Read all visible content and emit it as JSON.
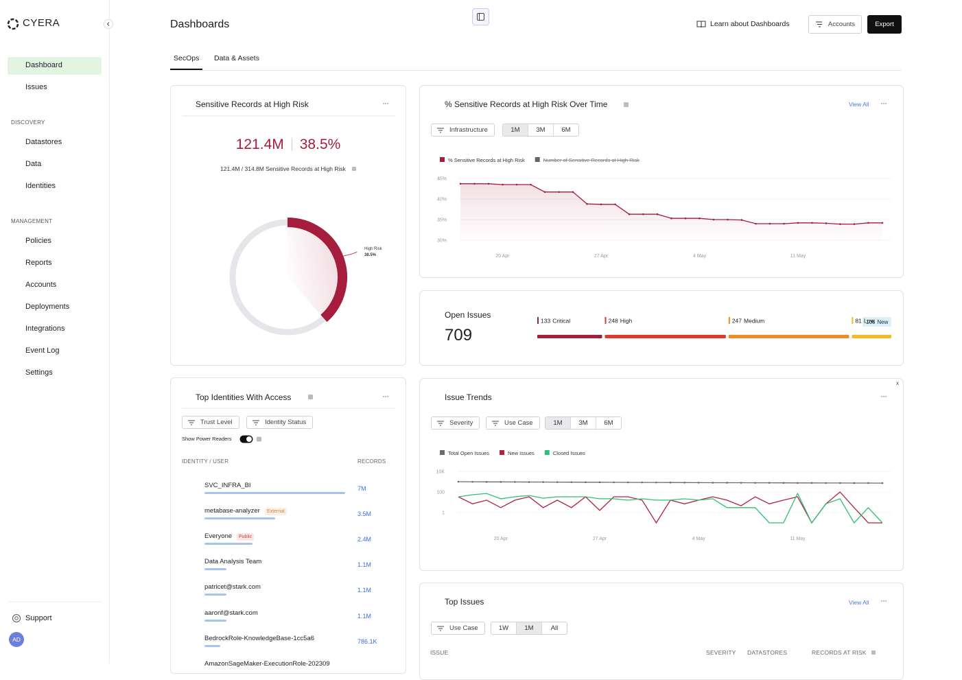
{
  "sidebar": {
    "logo": "CYERA",
    "nav": [
      "Dashboard",
      "Issues"
    ],
    "active": 0,
    "sections": [
      {
        "title": "DISCOVERY",
        "items": [
          "Datastores",
          "Data",
          "Identities"
        ]
      },
      {
        "title": "MANAGEMENT",
        "items": [
          "Policies",
          "Reports",
          "Accounts",
          "Deployments",
          "Integrations",
          "Event Log",
          "Settings"
        ]
      }
    ],
    "support": "Support",
    "avatar": "AD"
  },
  "header": {
    "title": "Dashboards",
    "learn": "Learn about Dashboards",
    "accounts": "Accounts",
    "export": "Export"
  },
  "tabs": [
    "SecOps",
    "Data & Assets"
  ],
  "active_tab": 0,
  "sensitive": {
    "title": "Sensitive Records at High Risk",
    "records": "121.4M",
    "percent": {
      "value": 38.5,
      "label": "38.5%"
    },
    "subtitle": "121.4M / 314.8M Sensitive Records at High Risk",
    "donut_label": "High Risk",
    "color": "#a51c3c"
  },
  "risk_over_time": {
    "title": "% Sensitive Records at High Risk Over Time",
    "view_all": "View All",
    "filter": "Infrastructure",
    "ranges": [
      "1M",
      "3M",
      "6M"
    ],
    "selected_range": 0,
    "chart": {
      "type": "line",
      "categories": [
        null,
        null,
        null,
        "20 Apr",
        null,
        null,
        null,
        null,
        null,
        null,
        "27 Apr",
        null,
        null,
        null,
        null,
        null,
        null,
        "4 May",
        null,
        null,
        null,
        null,
        null,
        null,
        "11 May",
        null,
        null,
        null,
        null,
        null,
        null
      ],
      "ylim": [
        30,
        45
      ],
      "yticks": [
        {
          "value": 45,
          "label": "45%"
        },
        {
          "value": 40,
          "label": "40%"
        },
        {
          "value": 35,
          "label": "35%"
        },
        {
          "value": 30,
          "label": "30%"
        }
      ],
      "series": [
        {
          "name": "% Sensitive Records at High Risk",
          "color": "#a51c3c",
          "values": [
            43.7,
            43.7,
            43.7,
            43.5,
            43.5,
            43.5,
            41.7,
            41.7,
            41.7,
            38.8,
            38.7,
            38.7,
            36.3,
            36.3,
            36.3,
            35.3,
            35.3,
            35.3,
            35,
            35,
            34.9,
            34,
            34,
            34,
            34.2,
            34.2,
            34.1,
            33.9,
            33.9,
            34.2,
            34.2
          ]
        }
      ],
      "hidden_series": [
        {
          "name": "Number of Sensitive Records at High Risk",
          "color": "#666666"
        }
      ]
    }
  },
  "open_issues": {
    "title": "Open Issues",
    "total": 709,
    "breakdown": [
      {
        "count": 133,
        "label": "Critical",
        "color": "#a51c3c"
      },
      {
        "count": 248,
        "label": "High",
        "color": "#e0392e"
      },
      {
        "count": 247,
        "label": "Medium",
        "color": "#f08a24"
      },
      {
        "count": 81,
        "label": "Low",
        "color": "#f5b921"
      }
    ],
    "new": {
      "count": 106,
      "label": "New"
    }
  },
  "identities": {
    "title": "Top Identities With Access",
    "filters": [
      "Trust Level",
      "Identity Status"
    ],
    "toggle": "Show Power Readers",
    "columns": [
      "IDENTITY / USER",
      "RECORDS"
    ],
    "rows": [
      {
        "name": "SVC_INFRA_BI",
        "records": {
          "value": 7000000,
          "label": "7M"
        }
      },
      {
        "name": "metabase-analyzer",
        "tag": {
          "text": "External",
          "color": "#d9822b"
        },
        "records": {
          "value": 3500000,
          "label": "3.5M"
        }
      },
      {
        "name": "Everyone",
        "tag": {
          "text": "Public",
          "color": "#d63b3b"
        },
        "records": {
          "value": 2400000,
          "label": "2.4M"
        }
      },
      {
        "name": "Data Analysis Team",
        "records": {
          "value": 1100000,
          "label": "1.1M"
        }
      },
      {
        "name": "patricet@stark.com",
        "records": {
          "value": 1100000,
          "label": "1.1M"
        }
      },
      {
        "name": "aaronf@stark.com",
        "records": {
          "value": 1100000,
          "label": "1.1M"
        }
      },
      {
        "name": "BedrockRole-KnowledgeBase-1cc5a6",
        "records": {
          "value": 786100,
          "label": "786.1K"
        }
      },
      {
        "name": "AmazonSageMaker-ExecutionRole-202309"
      }
    ]
  },
  "issue_trends": {
    "title": "Issue Trends",
    "close": "x",
    "filters": [
      "Severity",
      "Use Case"
    ],
    "ranges": [
      "1M",
      "3M",
      "6M"
    ],
    "selected_range": 0,
    "chart": {
      "type": "line",
      "log_scale": true,
      "categories": [
        null,
        null,
        null,
        "20 Apr",
        null,
        null,
        null,
        null,
        null,
        null,
        "27 Apr",
        null,
        null,
        null,
        null,
        null,
        null,
        "4 May",
        null,
        null,
        null,
        null,
        null,
        null,
        "11 May",
        null,
        null,
        null,
        null,
        null,
        null
      ],
      "ylim": [
        0.1,
        10000
      ],
      "yticks": [
        {
          "value": 10000,
          "label": "10K"
        },
        100,
        1
      ],
      "series": [
        {
          "name": "Total Open Issues",
          "color": "#6b6b6b",
          "values": [
            1000,
            980,
            960,
            950,
            940,
            930,
            920,
            910,
            900,
            890,
            880,
            870,
            860,
            850,
            840,
            830,
            820,
            810,
            800,
            800,
            790,
            780,
            780,
            770,
            760,
            760,
            750,
            750,
            740,
            740,
            730
          ]
        },
        {
          "name": "New Issues",
          "color": "#b0213f",
          "values": [
            34,
            7,
            16,
            3,
            16,
            34,
            3,
            16,
            3,
            34,
            1.6,
            34,
            34,
            16,
            0.1,
            16,
            7,
            16,
            34,
            16,
            4.6,
            34,
            7,
            16,
            34,
            0.1,
            7,
            100,
            3,
            0.1,
            0.1
          ]
        },
        {
          "name": "Closed Issues",
          "color": "#2fbf71",
          "values": [
            34,
            54,
            73,
            22,
            34,
            46,
            25,
            34,
            34,
            34,
            22,
            22,
            16,
            22,
            16,
            16,
            22,
            16,
            22,
            3,
            3,
            3,
            0.1,
            0.1,
            73,
            0.1,
            7,
            22,
            0.1,
            3,
            0.1
          ]
        }
      ]
    }
  },
  "top_issues": {
    "title": "Top Issues",
    "view_all": "View All",
    "filter": "Use Case",
    "ranges": [
      "1W",
      "1M",
      "All"
    ],
    "selected_range": 1,
    "columns": [
      "ISSUE",
      "SEVERITY",
      "DATASTORES",
      "RECORDS AT RISK"
    ]
  }
}
